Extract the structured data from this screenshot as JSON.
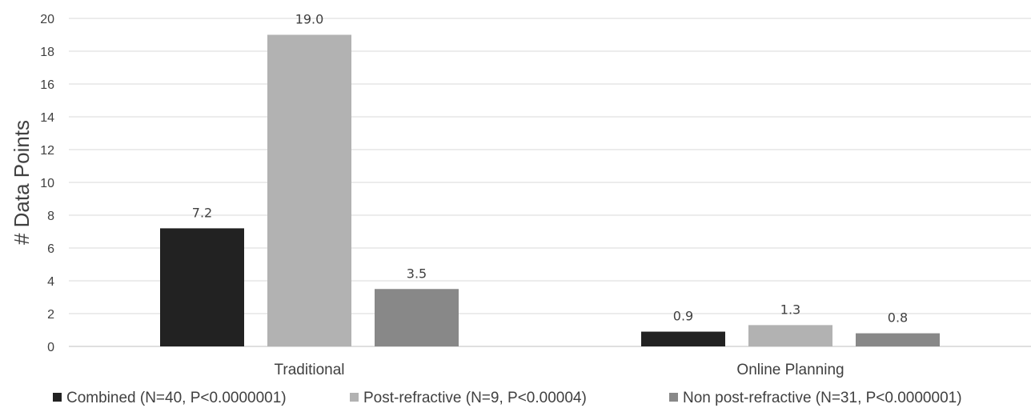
{
  "chart_data": {
    "type": "bar",
    "title": "",
    "xlabel": "",
    "ylabel": "# Data Points",
    "ylim": [
      0,
      20
    ],
    "yticks": [
      0,
      2,
      4,
      6,
      8,
      10,
      12,
      14,
      16,
      18,
      20
    ],
    "grid": true,
    "legend_position": "bottom",
    "categories": [
      "Traditional",
      "Online Planning"
    ],
    "series": [
      {
        "name": "Combined (N=40, P<0.0000001)",
        "color": "#222222",
        "values": [
          7.2,
          0.9
        ],
        "labels": [
          "7.2",
          "0.9"
        ]
      },
      {
        "name": "Post-refractive (N=9, P<0.00004)",
        "color": "#b2b2b2",
        "values": [
          19.0,
          1.3
        ],
        "labels": [
          "19.0",
          "1.3"
        ]
      },
      {
        "name": "Non post-refractive (N=31, P<0.0000001)",
        "color": "#888888",
        "values": [
          3.5,
          0.8
        ],
        "labels": [
          "3.5",
          "0.8"
        ]
      }
    ]
  }
}
